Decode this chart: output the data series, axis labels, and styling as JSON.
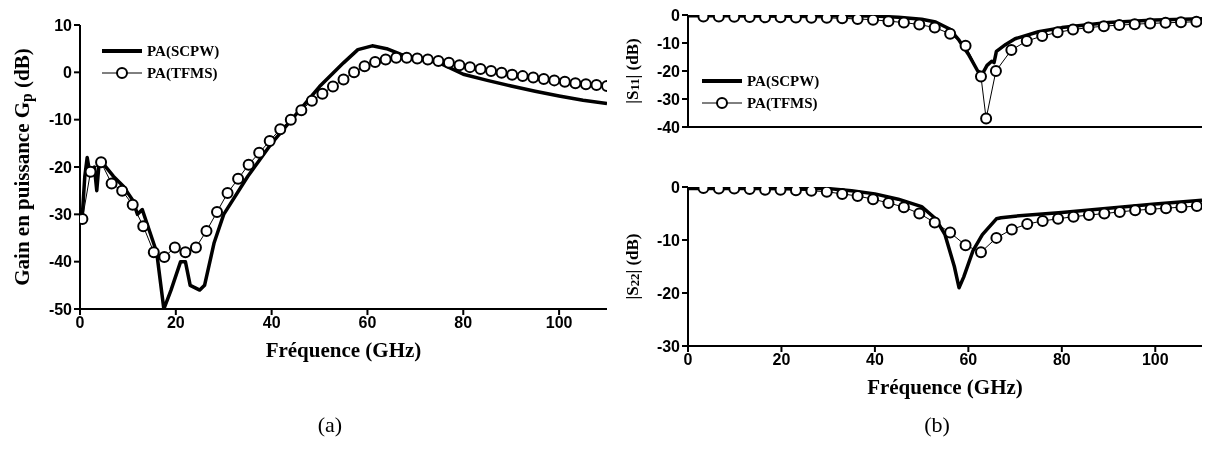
{
  "chart_data": [
    {
      "type": "line",
      "xlabel": "Fréquence (GHz)",
      "ylabel": "Gain en puissance G$_{p}$ (dB)",
      "xlim": [
        0,
        110
      ],
      "xticks": [
        0,
        20,
        40,
        60,
        80,
        100
      ],
      "ylim": [
        -50,
        10
      ],
      "yticks": [
        -50,
        -40,
        -30,
        -20,
        -10,
        0,
        10
      ],
      "legend": "top left",
      "grid": false,
      "annotations": [
        "(a)"
      ],
      "series": [
        {
          "name": "PA(SCPW)",
          "color": "#000000",
          "marker": "none",
          "x": [
            0.5,
            1,
            1.5,
            2,
            3,
            3.5,
            4,
            5,
            7,
            9,
            11,
            12,
            13,
            14,
            16,
            17.5,
            19,
            21,
            22,
            23,
            25,
            26,
            28,
            30,
            35,
            40,
            45,
            50,
            55,
            58,
            61,
            64,
            67,
            70,
            75,
            80,
            85,
            90,
            95,
            100,
            105,
            110
          ],
          "values": [
            -30,
            -22,
            -18,
            -21,
            -20,
            -25,
            -19,
            -19.5,
            -22,
            -24,
            -27,
            -30,
            -29,
            -32,
            -38,
            -50,
            -46,
            -40,
            -40,
            -45,
            -46,
            -45,
            -36,
            -30,
            -22,
            -15,
            -9,
            -3,
            2,
            4.8,
            5.6,
            5,
            3.8,
            3,
            2,
            -0.4,
            -1.7,
            -2.9,
            -4,
            -5,
            -5.9,
            -6.6
          ]
        },
        {
          "name": "PA(TFMS)",
          "color": "#000000",
          "marker": "circle",
          "x": [
            0.5,
            2.2,
            4.4,
            6.6,
            8.8,
            11,
            13.2,
            15.4,
            17.6,
            19.8,
            22,
            24.2,
            26.4,
            28.6,
            30.8,
            33,
            35.2,
            37.4,
            39.6,
            41.8,
            44,
            46.2,
            48.4,
            50.6,
            52.8,
            55,
            57.2,
            59.4,
            61.6,
            63.8,
            66,
            68.2,
            70.4,
            72.6,
            74.8,
            77,
            79.2,
            81.4,
            83.6,
            85.8,
            88,
            90.2,
            92.4,
            94.6,
            96.8,
            99,
            101.2,
            103.4,
            105.6,
            107.8,
            110
          ],
          "values": [
            -31,
            -21,
            -19,
            -23.5,
            -25,
            -28,
            -32.5,
            -38,
            -39,
            -37,
            -38,
            -37,
            -33.5,
            -29.5,
            -25.5,
            -22.5,
            -19.5,
            -17,
            -14.5,
            -12,
            -10,
            -8,
            -6,
            -4.5,
            -3,
            -1.5,
            0,
            1.3,
            2.2,
            2.7,
            3.1,
            3.1,
            2.9,
            2.7,
            2.4,
            2,
            1.5,
            1.1,
            0.7,
            0.3,
            -0.1,
            -0.5,
            -0.8,
            -1.1,
            -1.4,
            -1.7,
            -2,
            -2.3,
            -2.5,
            -2.7,
            -2.9
          ]
        }
      ]
    },
    {
      "type": "line",
      "ylabel": "|S$_{11}$| (dB)",
      "xlim": [
        0,
        110
      ],
      "xticks": [
        0,
        20,
        40,
        60,
        80,
        100
      ],
      "ylim": [
        -40,
        0
      ],
      "yticks": [
        -40,
        -30,
        -20,
        -10,
        0
      ],
      "tick_labels": "y",
      "legend": "bottom left",
      "grid": false,
      "series": [
        {
          "name": "PA(SCPW)",
          "color": "#000000",
          "marker": "none",
          "x": [
            0,
            10,
            20,
            30,
            40,
            45,
            50,
            53,
            56,
            58,
            60,
            62,
            63,
            64,
            65,
            65.5,
            66,
            68,
            70,
            75,
            80,
            90,
            100,
            110
          ],
          "values": [
            -0.3,
            -0.3,
            -0.3,
            -0.3,
            -0.4,
            -0.8,
            -1.5,
            -2.5,
            -5,
            -9,
            -14,
            -20,
            -21,
            -18,
            -16.5,
            -17,
            -13,
            -10.5,
            -8.5,
            -6,
            -4.5,
            -2.7,
            -1.8,
            -1.3
          ]
        },
        {
          "name": "PA(TFMS)",
          "color": "#000000",
          "marker": "circle",
          "x": [
            3.3,
            6.6,
            9.9,
            13.2,
            16.5,
            19.8,
            23.1,
            26.4,
            29.7,
            33,
            36.3,
            39.6,
            42.9,
            46.2,
            49.5,
            52.8,
            56.1,
            59.4,
            62.7,
            63.8,
            65.9,
            69.2,
            72.5,
            75.8,
            79.1,
            82.4,
            85.7,
            89,
            92.3,
            95.6,
            98.9,
            102.2,
            105.5,
            108.8
          ],
          "values": [
            -0.5,
            -0.5,
            -0.6,
            -0.7,
            -0.8,
            -0.8,
            -0.9,
            -1,
            -1,
            -1.2,
            -1.4,
            -1.7,
            -2.2,
            -2.7,
            -3.4,
            -4.5,
            -6.7,
            -11,
            -22,
            -37,
            -20,
            -12.5,
            -9.3,
            -7.5,
            -6.2,
            -5.2,
            -4.5,
            -4,
            -3.6,
            -3.3,
            -3,
            -2.8,
            -2.6,
            -2.4
          ]
        }
      ]
    },
    {
      "type": "line",
      "xlabel": "Fréquence (GHz)",
      "ylabel": "|S$_{22}$| (dB)",
      "xlim": [
        0,
        110
      ],
      "xticks": [
        0,
        20,
        40,
        60,
        80,
        100
      ],
      "ylim": [
        -30,
        0
      ],
      "yticks": [
        -30,
        -20,
        -10,
        0
      ],
      "grid": false,
      "annotations": [
        "(b)"
      ],
      "series": [
        {
          "color": "#000000",
          "marker": "none",
          "x": [
            0,
            10,
            20,
            30,
            35,
            40,
            45,
            50,
            53,
            55,
            57,
            58,
            59,
            61,
            63,
            65,
            66,
            67,
            70,
            80,
            90,
            100,
            110
          ],
          "values": [
            -0.3,
            -0.3,
            -0.3,
            -0.3,
            -0.7,
            -1.3,
            -2.3,
            -3.7,
            -6,
            -9,
            -15,
            -19,
            -17,
            -12,
            -9,
            -7,
            -6,
            -5.8,
            -5.5,
            -4.8,
            -4,
            -3.2,
            -2.5
          ]
        },
        {
          "color": "#000000",
          "marker": "circle",
          "x": [
            3.3,
            6.6,
            9.9,
            13.2,
            16.5,
            19.8,
            23.1,
            26.4,
            29.7,
            33,
            36.3,
            39.6,
            42.9,
            46.2,
            49.5,
            52.8,
            56.1,
            59.4,
            62.7,
            66,
            69.3,
            72.6,
            75.9,
            79.2,
            82.5,
            85.8,
            89.1,
            92.4,
            95.7,
            99,
            102.3,
            105.6,
            108.9
          ],
          "values": [
            -0.2,
            -0.3,
            -0.3,
            -0.4,
            -0.5,
            -0.5,
            -0.6,
            -0.7,
            -0.9,
            -1.3,
            -1.7,
            -2.3,
            -3,
            -3.8,
            -5,
            -6.7,
            -8.6,
            -11,
            -12.3,
            -9.6,
            -8,
            -7,
            -6.4,
            -6,
            -5.6,
            -5.3,
            -5,
            -4.7,
            -4.4,
            -4.2,
            -4,
            -3.8,
            -3.6
          ]
        }
      ]
    }
  ]
}
